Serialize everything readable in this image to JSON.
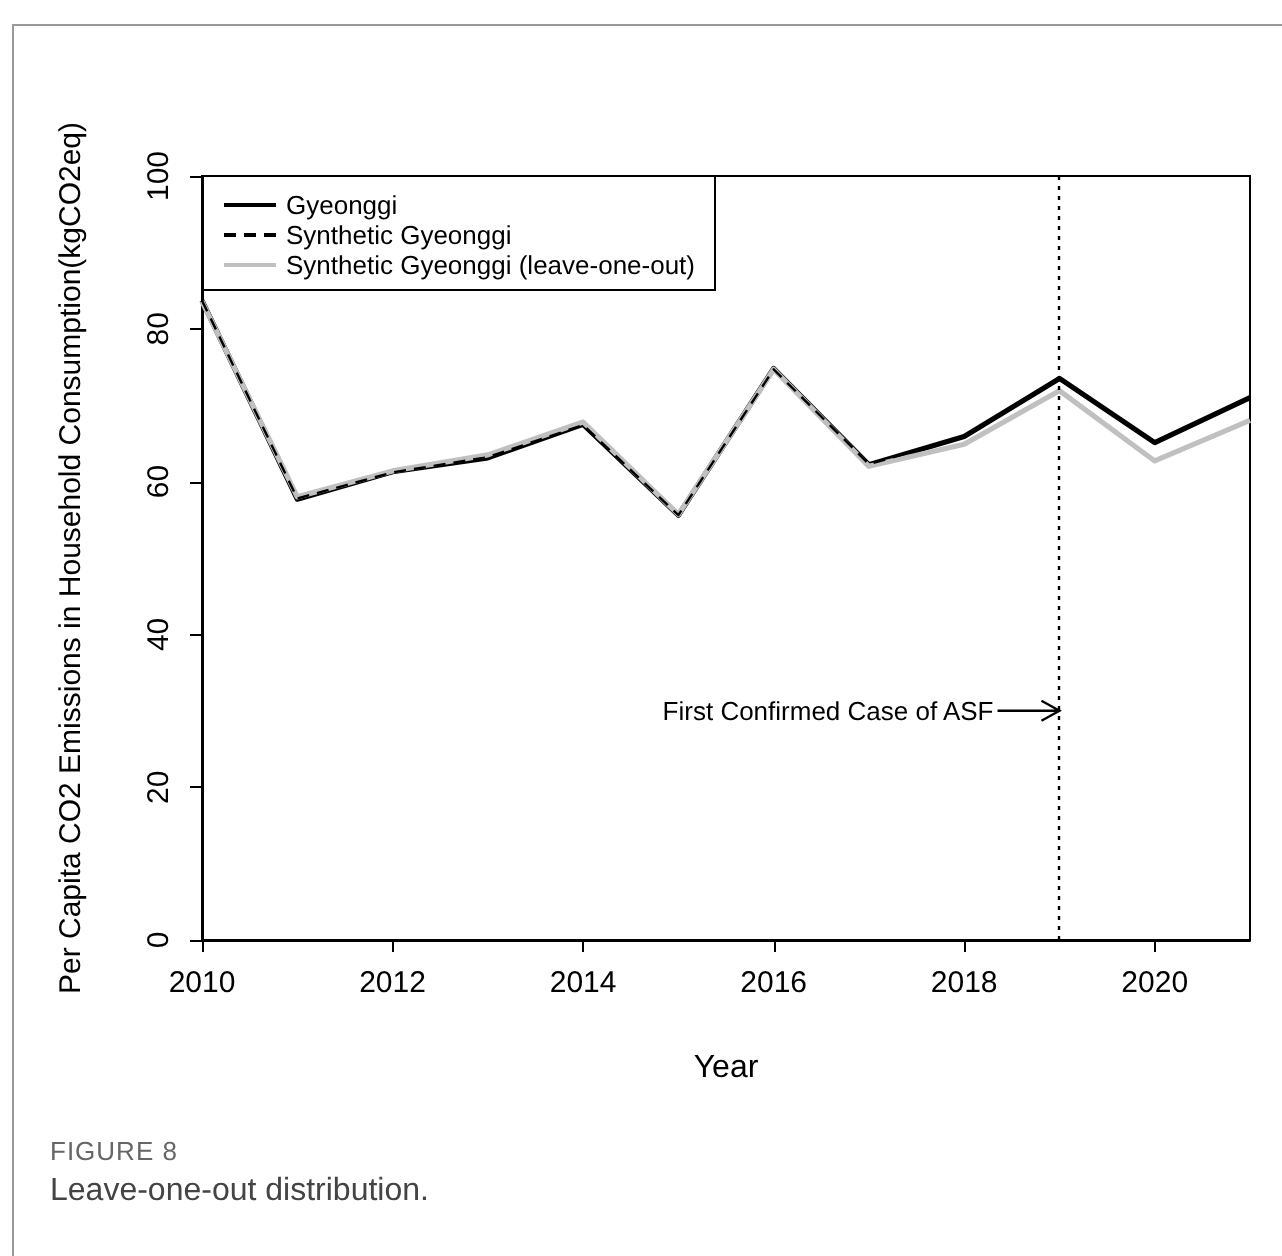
{
  "chart_data": {
    "type": "line",
    "xlabel": "Year",
    "ylabel": "Per Capita CO2 Emissions in Household Consumption(kgCO2eq)",
    "x": [
      2010,
      2011,
      2012,
      2013,
      2014,
      2015,
      2016,
      2017,
      2018,
      2019,
      2020,
      2021
    ],
    "series": [
      {
        "name": "Gyeonggi",
        "color": "#000000",
        "line_style": "solid",
        "values": [
          83.7,
          57.7,
          61.3,
          63.1,
          67.5,
          55.6,
          74.8,
          62.2,
          65.9,
          73.5,
          65.1,
          71.0
        ]
      },
      {
        "name": "Synthetic Gyeonggi",
        "color": "#000000",
        "line_style": "dashed",
        "values": [
          83.7,
          57.8,
          61.2,
          63.2,
          67.4,
          55.6,
          74.7,
          62.3,
          65.8,
          73.4,
          65.0,
          70.9
        ]
      },
      {
        "name": "Synthetic Gyeonggi (leave-one-out)",
        "color": "#c0c0c0",
        "line_style": "solid",
        "values": [
          83.6,
          58.0,
          61.4,
          63.5,
          67.8,
          55.7,
          74.7,
          62.0,
          64.9,
          71.9,
          62.7,
          68.0
        ]
      }
    ],
    "xlim": [
      2010,
      2021
    ],
    "xticks": [
      2010,
      2012,
      2014,
      2016,
      2018,
      2020
    ],
    "ylim": [
      0,
      100
    ],
    "yticks": [
      0,
      20,
      40,
      60,
      80,
      100
    ],
    "ref_lines": [
      {
        "axis": "x",
        "value": 2019,
        "color": "#000000",
        "line_style": "dotted"
      }
    ],
    "annotations": [
      "FIGURE 8",
      "Leave-one-out distribution.",
      {
        "text": "First Confirmed Case of ASF",
        "x": 2019,
        "y": 30
      }
    ],
    "legend": "top left",
    "grid": false,
    "marker": "none"
  }
}
